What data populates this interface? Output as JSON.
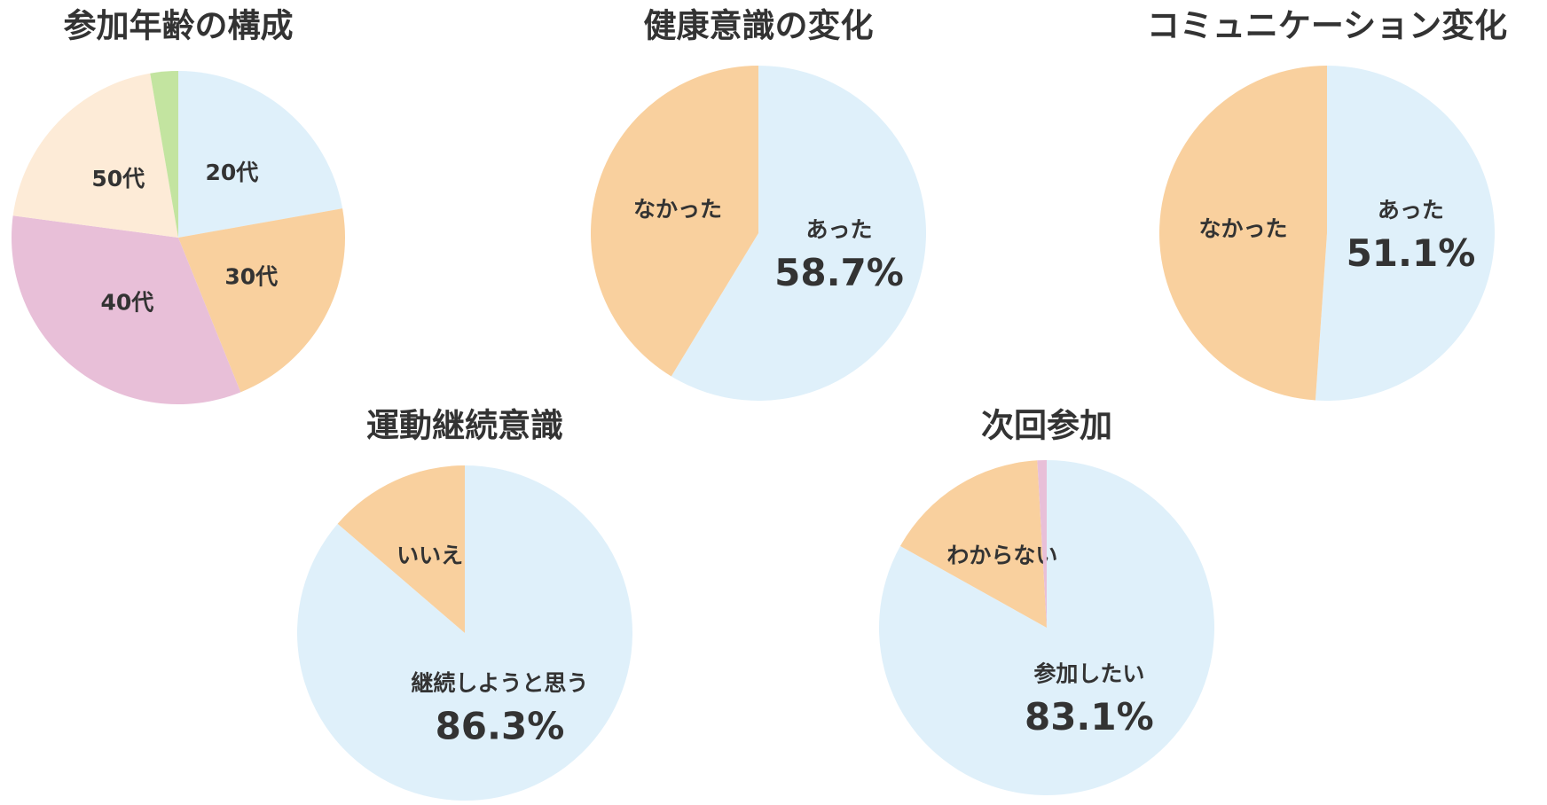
{
  "chart_data": [
    {
      "type": "pie",
      "title": "参加年齢の構成",
      "categories": [
        "20代",
        "30代",
        "40代",
        "50代",
        null
      ],
      "values": [
        22.2,
        21.7,
        33.2,
        20.2,
        2.7
      ],
      "colors": [
        "#dff0fa",
        "#f9d09e",
        "#e8bfd8",
        "#fdebd7",
        "#c3e4a0"
      ]
    },
    {
      "type": "pie",
      "title": "健康意識の変化",
      "categories": [
        "あった",
        "なかった"
      ],
      "values": [
        58.7,
        41.3
      ],
      "value_labels": [
        "58.7%",
        null
      ],
      "colors": [
        "#dff0fa",
        "#f9d09e"
      ]
    },
    {
      "type": "pie",
      "title": "コミュニケーション変化",
      "categories": [
        "あった",
        "なかった"
      ],
      "values": [
        51.1,
        48.9
      ],
      "value_labels": [
        "51.1%",
        null
      ],
      "colors": [
        "#dff0fa",
        "#f9d09e"
      ]
    },
    {
      "type": "pie",
      "title": "運動継続意識",
      "categories": [
        "継続しようと思う",
        "いいえ"
      ],
      "values": [
        86.3,
        13.7
      ],
      "value_labels": [
        "86.3%",
        null
      ],
      "colors": [
        "#dff0fa",
        "#f9d09e"
      ]
    },
    {
      "type": "pie",
      "title": "次回参加",
      "categories": [
        "参加したい",
        "わからない",
        null
      ],
      "values": [
        83.1,
        16.0,
        0.9
      ],
      "value_labels": [
        "83.1%",
        null,
        null
      ],
      "colors": [
        "#dff0fa",
        "#f9d09e",
        "#e8bfd8"
      ]
    }
  ]
}
